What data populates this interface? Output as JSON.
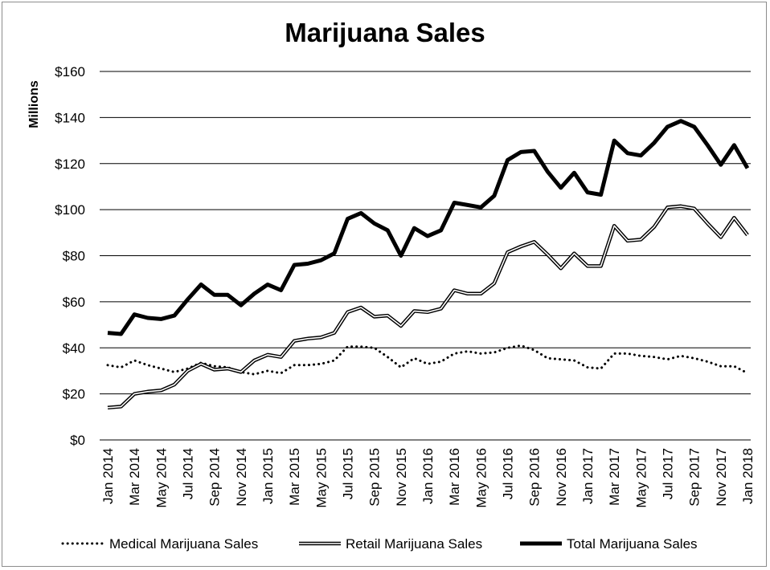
{
  "chart_data": {
    "type": "line",
    "title": "Marijuana Sales",
    "ylabel": "Millions",
    "xlabel": "",
    "y_unit_prefix": "$",
    "ylim": [
      0,
      160
    ],
    "y_ticks": [
      0,
      20,
      40,
      60,
      80,
      100,
      120,
      140,
      160
    ],
    "y_tick_labels": [
      "$0",
      "$20",
      "$40",
      "$60",
      "$80",
      "$100",
      "$120",
      "$140",
      "$160"
    ],
    "grid": "horizontal",
    "legend_position": "bottom",
    "categories": [
      "Jan 2014",
      "Feb 2014",
      "Mar 2014",
      "Apr 2014",
      "May 2014",
      "Jun 2014",
      "Jul 2014",
      "Aug 2014",
      "Sep 2014",
      "Oct 2014",
      "Nov 2014",
      "Dec 2014",
      "Jan 2015",
      "Feb 2015",
      "Mar 2015",
      "Apr 2015",
      "May 2015",
      "Jun 2015",
      "Jul 2015",
      "Aug 2015",
      "Sep 2015",
      "Oct 2015",
      "Nov 2015",
      "Dec 2015",
      "Jan 2016",
      "Feb 2016",
      "Mar 2016",
      "Apr 2016",
      "May 2016",
      "Jun 2016",
      "Jul 2016",
      "Aug 2016",
      "Sep 2016",
      "Oct 2016",
      "Nov 2016",
      "Dec 2016",
      "Jan 2017",
      "Feb 2017",
      "Mar 2017",
      "Apr 2017",
      "May 2017",
      "Jun 2017",
      "Jul 2017",
      "Aug 2017",
      "Sep 2017",
      "Oct 2017",
      "Nov 2017",
      "Dec 2017",
      "Jan 2018"
    ],
    "x_tick_labels": [
      "Jan 2014",
      "Mar 2014",
      "May 2014",
      "Jul 2014",
      "Sep 2014",
      "Nov 2014",
      "Jan 2015",
      "Mar 2015",
      "May 2015",
      "Jul 2015",
      "Sep 2015",
      "Nov 2015",
      "Jan 2016",
      "Mar 2016",
      "May 2016",
      "Jul 2016",
      "Sep 2016",
      "Nov 2016",
      "Jan 2017",
      "Mar 2017",
      "May 2017",
      "Jul 2017",
      "Sep 2017",
      "Nov 2017",
      "Jan 2018"
    ],
    "series": [
      {
        "name": "Medical Marijuana Sales",
        "style": "dotted",
        "color": "#000000",
        "values": [
          32.5,
          31.5,
          34.5,
          32.5,
          31,
          29.5,
          31,
          33.5,
          32,
          31.5,
          29.5,
          28.5,
          30,
          29,
          32.5,
          32.5,
          33,
          34.5,
          40.5,
          40.5,
          40,
          36,
          31.5,
          35.5,
          33,
          34,
          37.5,
          38.5,
          37.5,
          38,
          40,
          41,
          39,
          35.5,
          35,
          34.5,
          31.5,
          31,
          37.5,
          37.5,
          36.5,
          36,
          35,
          36.5,
          35.5,
          34,
          32,
          32,
          29
        ]
      },
      {
        "name": "Retail Marijuana Sales",
        "style": "double",
        "color": "#000000",
        "values": [
          14,
          14.5,
          20,
          21,
          21.5,
          24,
          30,
          33,
          30.5,
          31,
          29.5,
          34.5,
          37,
          36,
          43,
          44,
          44.5,
          46.5,
          55.5,
          57.5,
          53.5,
          54,
          49.5,
          56,
          55.5,
          57,
          65,
          63.5,
          63.5,
          68,
          81.5,
          84,
          86,
          80.5,
          74.5,
          81,
          75.5,
          75.5,
          93,
          86.5,
          87,
          92.5,
          101,
          101.5,
          100.5,
          94,
          88,
          96.5,
          89
        ]
      },
      {
        "name": "Total Marijuana Sales",
        "style": "thick",
        "color": "#000000",
        "values": [
          46.5,
          46,
          54.5,
          53,
          52.5,
          54,
          61,
          67.5,
          63,
          63,
          58.5,
          63.5,
          67.5,
          65,
          76,
          76.5,
          78,
          81,
          96,
          98.5,
          94,
          91,
          80,
          92,
          88.5,
          91,
          103,
          102,
          101,
          106,
          121.5,
          125,
          125.5,
          116.5,
          109.5,
          116,
          107.5,
          106.5,
          130,
          124.5,
          123.5,
          129,
          136,
          138.5,
          136,
          128,
          119.5,
          128,
          118
        ]
      }
    ]
  }
}
